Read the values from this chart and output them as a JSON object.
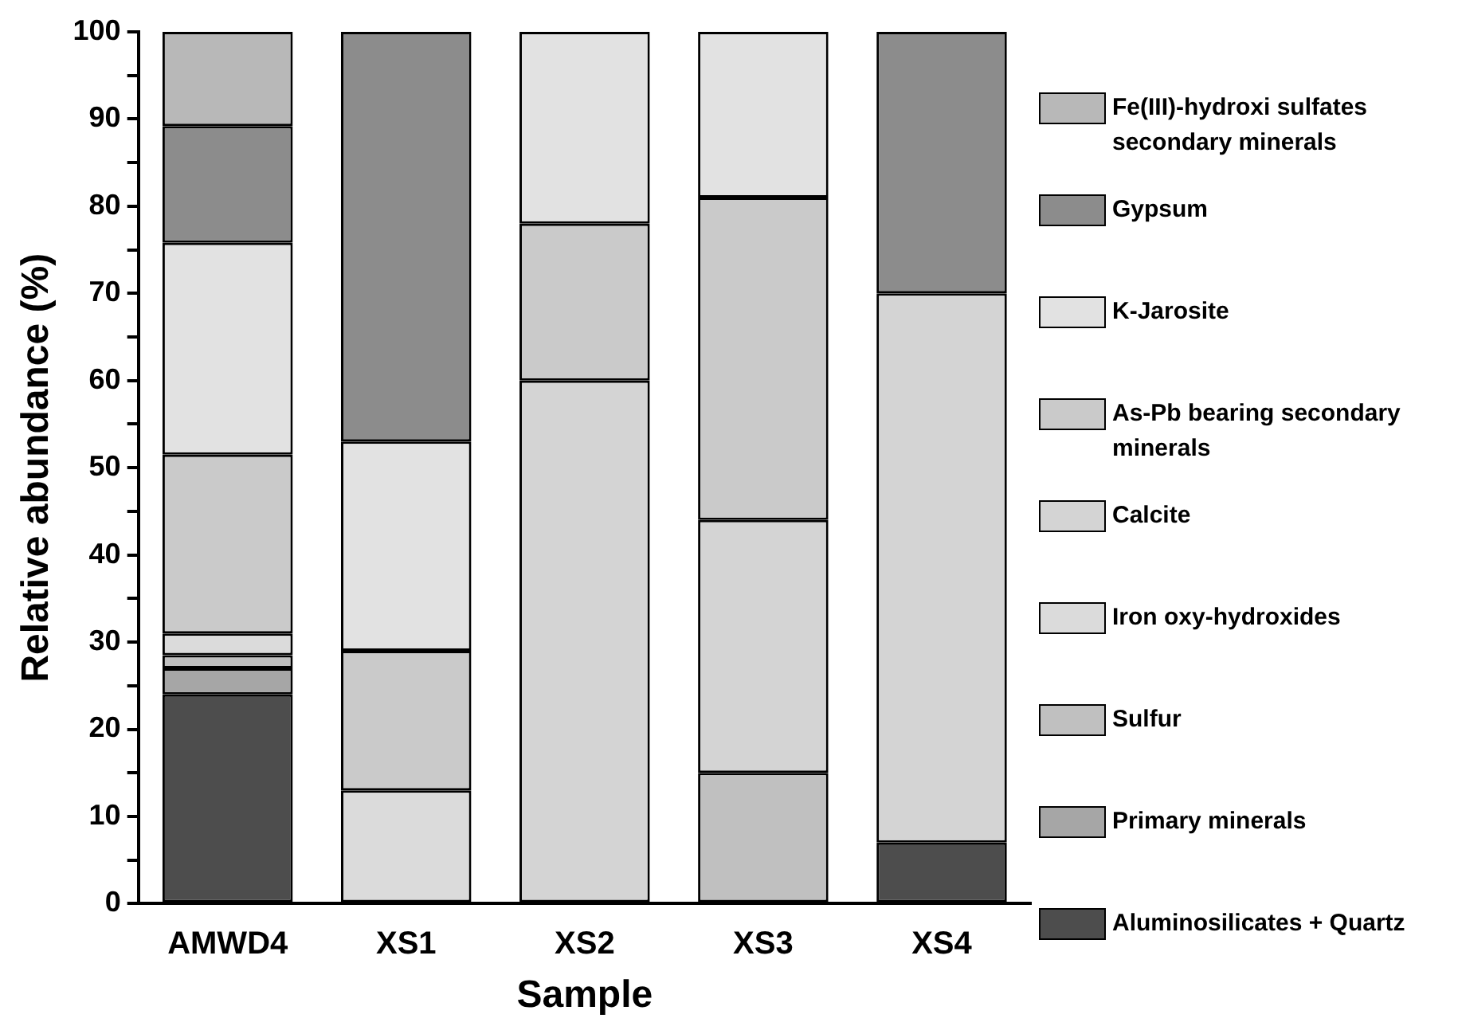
{
  "chart_data": {
    "type": "bar",
    "stacked": true,
    "xlabel": "Sample",
    "ylabel": "Relative abundance (%)",
    "categories": [
      "AMWD4",
      "XS1",
      "XS2",
      "XS3",
      "XS4"
    ],
    "ylim": [
      0,
      100
    ],
    "yticks": [
      0,
      {
        "value": 5,
        "label": null
      },
      10,
      {
        "value": 15,
        "label": null
      },
      20,
      {
        "value": 25,
        "label": null
      },
      30,
      {
        "value": 35,
        "label": null
      },
      40,
      {
        "value": 45,
        "label": null
      },
      50,
      {
        "value": 55,
        "label": null
      },
      60,
      {
        "value": 65,
        "label": null
      },
      70,
      {
        "value": 75,
        "label": null
      },
      80,
      {
        "value": 85,
        "label": null
      },
      90,
      {
        "value": 95,
        "label": null
      },
      100
    ],
    "grid": false,
    "legend": "right",
    "series": [
      {
        "name": "Aluminosilicates + Quartz",
        "color": "#4d4d4d",
        "values": [
          24,
          0,
          0,
          0,
          7
        ]
      },
      {
        "name": "Primary minerals",
        "color": "#a6a6a6",
        "values": [
          3,
          0,
          0,
          0,
          0
        ]
      },
      {
        "name": "Sulfur",
        "color": "#c0c0c0",
        "values": [
          1.5,
          0,
          0,
          15,
          0
        ]
      },
      {
        "name": "Iron oxy-hydroxides",
        "color": "#dbdbdb",
        "values": [
          2.5,
          13,
          0,
          0,
          0
        ]
      },
      {
        "name": "Calcite",
        "color": "#d4d4d4",
        "values": [
          0,
          0,
          60,
          29,
          63
        ]
      },
      {
        "name": "As-Pb bearing secondary minerals",
        "color": "#cacaca",
        "values": [
          20.5,
          16,
          18,
          37,
          0
        ]
      },
      {
        "name": "K-Jarosite",
        "color": "#e2e2e2",
        "values": [
          24.3,
          24,
          22,
          19,
          0
        ]
      },
      {
        "name": "Gypsum",
        "color": "#8c8c8c",
        "values": [
          13.4,
          47,
          0,
          0,
          30
        ]
      },
      {
        "name": "Fe(III)-hydroxi sulfates secondary minerals",
        "color": "#b8b8b8",
        "values": [
          10.8,
          0,
          0,
          0,
          0
        ]
      }
    ]
  }
}
